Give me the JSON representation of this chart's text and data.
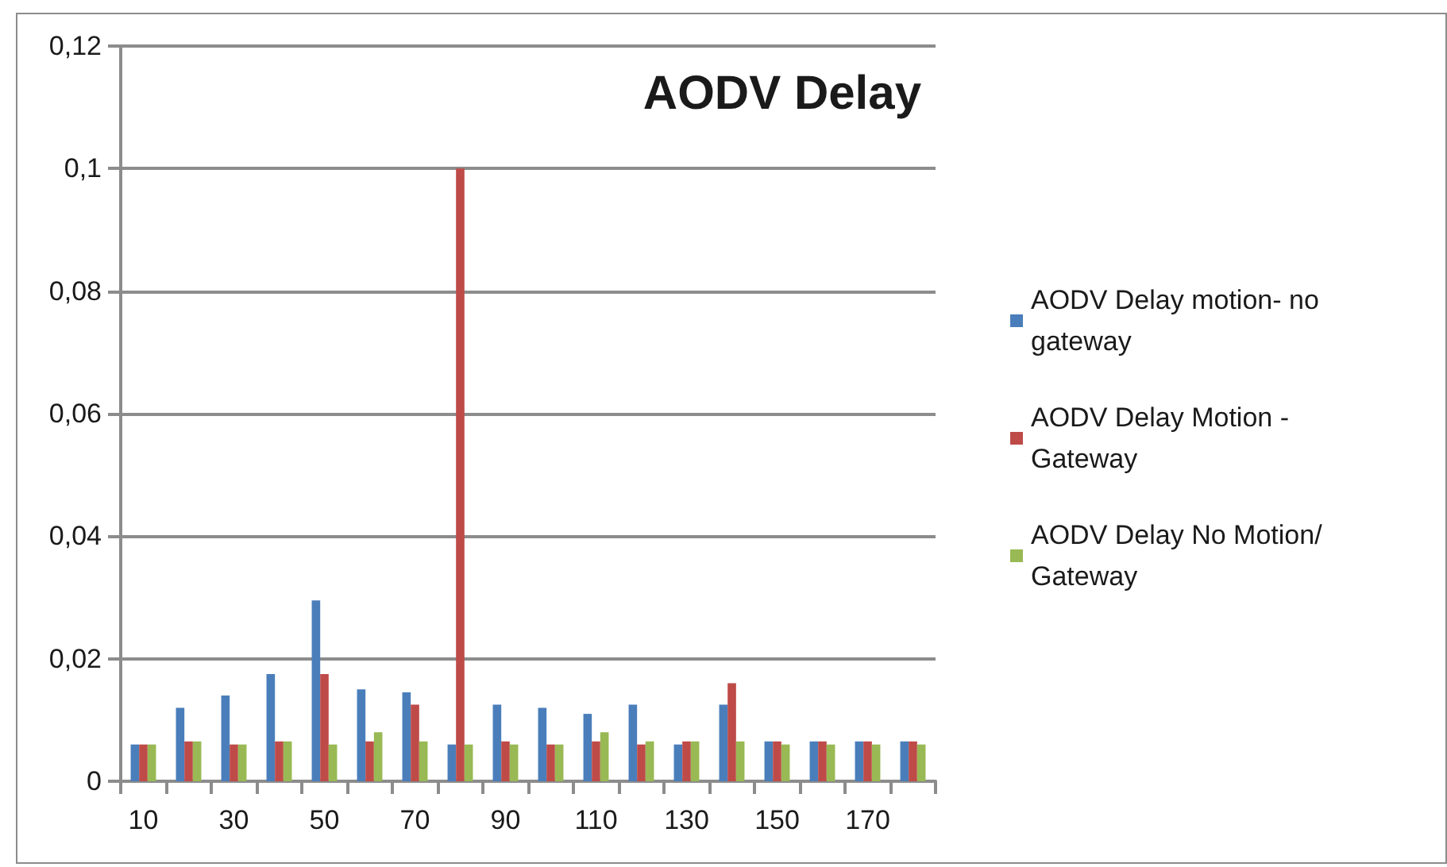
{
  "chart_data": {
    "type": "bar",
    "title": "AODV Delay",
    "categories": [
      "10",
      null,
      "30",
      null,
      "50",
      null,
      "70",
      null,
      "90",
      null,
      "110",
      null,
      "130",
      null,
      "150",
      null,
      "170",
      null
    ],
    "series": [
      {
        "name": "AODV Delay motion- no gateway",
        "color": "#4a7ebb",
        "values": [
          0.006,
          0.012,
          0.014,
          0.0175,
          0.0295,
          0.015,
          0.0145,
          0.006,
          0.0125,
          0.012,
          0.011,
          0.0125,
          0.006,
          0.0125,
          0.0065,
          0.0065,
          0.0065,
          0.0065
        ]
      },
      {
        "name": "AODV Delay Motion - Gateway",
        "color": "#be4b48",
        "values": [
          0.006,
          0.0065,
          0.006,
          0.0065,
          0.0175,
          0.0065,
          0.0125,
          0.1,
          0.0065,
          0.006,
          0.0065,
          0.006,
          0.0065,
          0.016,
          0.0065,
          0.0065,
          0.0065,
          0.0065
        ]
      },
      {
        "name": "AODV Delay No Motion/Gateway",
        "color": "#98b954",
        "values": [
          0.006,
          0.0065,
          0.006,
          0.0065,
          0.006,
          0.008,
          0.0065,
          0.006,
          0.006,
          0.006,
          0.008,
          0.0065,
          0.0065,
          0.0065,
          0.006,
          0.006,
          0.006,
          0.006
        ]
      }
    ],
    "ylim": [
      0,
      0.12
    ],
    "yticks": [
      {
        "value": 0,
        "label": "0"
      },
      {
        "value": 0.02,
        "label": "0,02"
      },
      {
        "value": 0.04,
        "label": "0,04"
      },
      {
        "value": 0.06,
        "label": "0,06"
      },
      {
        "value": 0.08,
        "label": "0,08"
      },
      {
        "value": 0.1,
        "label": "0,1"
      },
      {
        "value": 0.12,
        "label": "0,12"
      }
    ],
    "grid": "y",
    "legend": "right"
  }
}
